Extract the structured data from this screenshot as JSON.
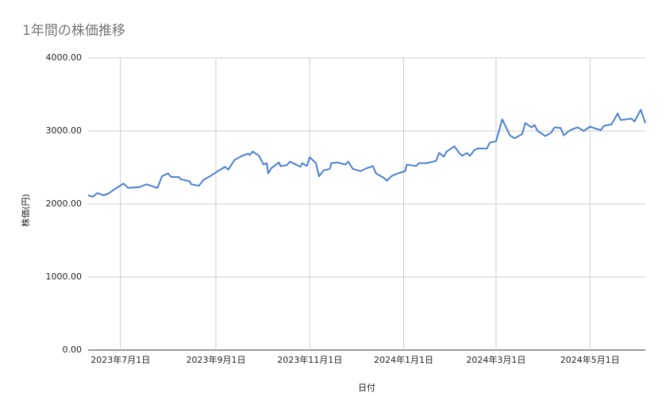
{
  "chart_data": {
    "type": "line",
    "title": "1年間の株価推移",
    "x_label": "日付",
    "y_label": "株価(円)",
    "xlim": [
      "2023-06-10",
      "2024-06-06"
    ],
    "xticks": [
      {
        "value": "2023-07-01",
        "label": "2023年7月1日"
      },
      {
        "value": "2023-09-01",
        "label": "2023年9月1日"
      },
      {
        "value": "2023-11-01",
        "label": "2023年11月1日"
      },
      {
        "value": "2024-01-01",
        "label": "2024年1月1日"
      },
      {
        "value": "2024-03-01",
        "label": "2024年3月1日"
      },
      {
        "value": "2024-05-01",
        "label": "2024年5月1日"
      }
    ],
    "ylim": [
      0,
      4000
    ],
    "yticks": [
      {
        "value": 0,
        "label": "0.00"
      },
      {
        "value": 1000,
        "label": "1000.00"
      },
      {
        "value": 2000,
        "label": "2000.00"
      },
      {
        "value": 3000,
        "label": "3000.00"
      },
      {
        "value": 4000,
        "label": "4000.00"
      }
    ],
    "grid": true,
    "series": [
      {
        "name": "株価",
        "color": "#4a7fcf",
        "x": [
          "2023-06-10",
          "2023-06-13",
          "2023-06-16",
          "2023-06-20",
          "2023-06-23",
          "2023-06-27",
          "2023-07-03",
          "2023-07-06",
          "2023-07-13",
          "2023-07-18",
          "2023-07-25",
          "2023-07-28",
          "2023-08-01",
          "2023-08-03",
          "2023-08-08",
          "2023-08-09",
          "2023-08-15",
          "2023-08-16",
          "2023-08-21",
          "2023-08-24",
          "2023-08-29",
          "2023-09-03",
          "2023-09-07",
          "2023-09-09",
          "2023-09-13",
          "2023-09-18",
          "2023-09-22",
          "2023-09-23",
          "2023-09-25",
          "2023-09-29",
          "2023-10-02",
          "2023-10-04",
          "2023-10-05",
          "2023-10-07",
          "2023-10-12",
          "2023-10-13",
          "2023-10-17",
          "2023-10-19",
          "2023-10-23",
          "2023-10-26",
          "2023-10-27",
          "2023-10-30",
          "2023-11-01",
          "2023-11-05",
          "2023-11-07",
          "2023-11-10",
          "2023-11-14",
          "2023-11-15",
          "2023-11-19",
          "2023-11-24",
          "2023-11-26",
          "2023-11-29",
          "2023-12-04",
          "2023-12-08",
          "2023-12-12",
          "2023-12-14",
          "2023-12-19",
          "2023-12-21",
          "2023-12-24",
          "2023-12-27",
          "2024-01-02",
          "2024-01-03",
          "2024-01-09",
          "2024-01-11",
          "2024-01-16",
          "2024-01-22",
          "2024-01-24",
          "2024-01-27",
          "2024-01-29",
          "2024-02-03",
          "2024-02-06",
          "2024-02-08",
          "2024-02-11",
          "2024-02-13",
          "2024-02-16",
          "2024-02-18",
          "2024-02-24",
          "2024-02-26",
          "2024-03-01",
          "2024-03-05",
          "2024-03-10",
          "2024-03-13",
          "2024-03-18",
          "2024-03-20",
          "2024-03-24",
          "2024-03-26",
          "2024-03-28",
          "2024-04-02",
          "2024-04-06",
          "2024-04-08",
          "2024-04-12",
          "2024-04-14",
          "2024-04-18",
          "2024-04-23",
          "2024-04-27",
          "2024-05-01",
          "2024-05-08",
          "2024-05-10",
          "2024-05-15",
          "2024-05-19",
          "2024-05-21",
          "2024-05-28",
          "2024-05-30",
          "2024-06-03",
          "2024-06-06"
        ],
        "values": [
          2120,
          2100,
          2150,
          2120,
          2140,
          2200,
          2280,
          2220,
          2230,
          2270,
          2220,
          2380,
          2420,
          2370,
          2370,
          2340,
          2310,
          2270,
          2250,
          2330,
          2390,
          2460,
          2510,
          2470,
          2600,
          2660,
          2690,
          2670,
          2720,
          2660,
          2540,
          2560,
          2420,
          2490,
          2570,
          2520,
          2530,
          2580,
          2540,
          2510,
          2560,
          2520,
          2640,
          2560,
          2380,
          2460,
          2480,
          2560,
          2570,
          2540,
          2580,
          2480,
          2450,
          2490,
          2520,
          2420,
          2360,
          2320,
          2380,
          2410,
          2450,
          2540,
          2520,
          2560,
          2560,
          2590,
          2700,
          2650,
          2720,
          2790,
          2700,
          2660,
          2700,
          2660,
          2740,
          2760,
          2760,
          2840,
          2860,
          3160,
          2940,
          2900,
          2960,
          3110,
          3050,
          3080,
          3000,
          2930,
          2980,
          3050,
          3040,
          2940,
          3010,
          3050,
          3000,
          3060,
          3010,
          3070,
          3090,
          3240,
          3150,
          3170,
          3130,
          3290,
          3110
        ]
      }
    ]
  }
}
